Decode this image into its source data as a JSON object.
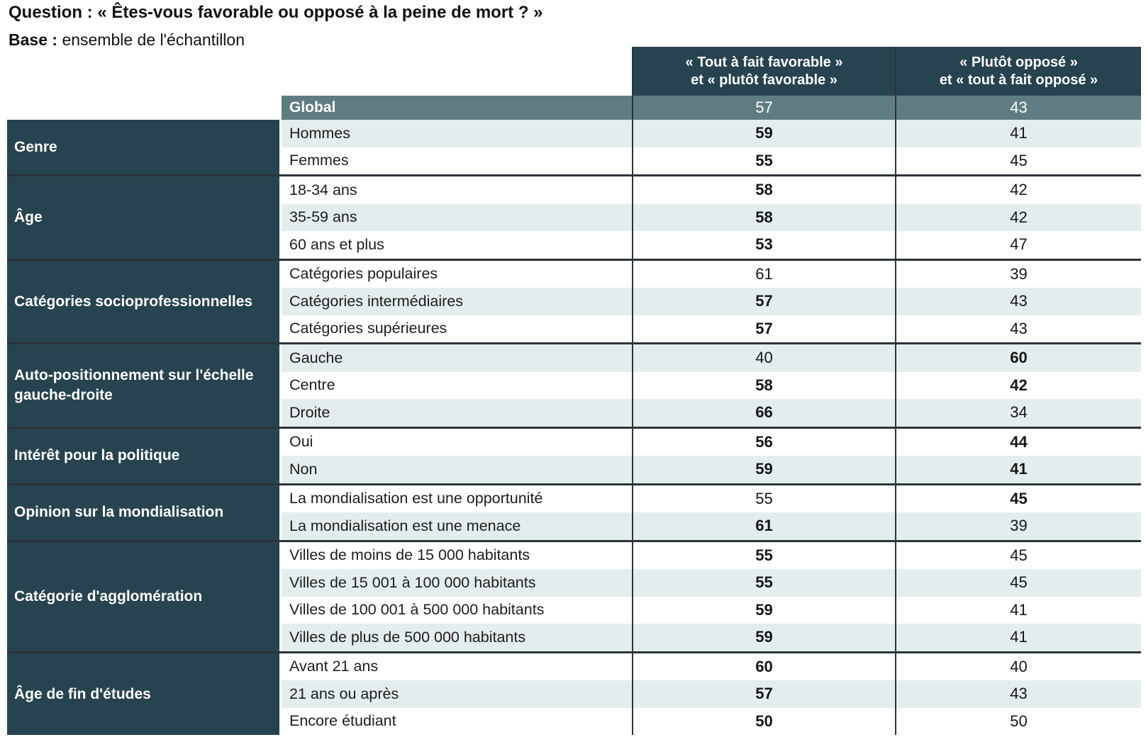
{
  "page": {
    "question_label": "Question :",
    "question_text": "« Êtes-vous favorable ou opposé à la peine de mort ? »",
    "base_label": "Base :",
    "base_text": "ensemble de l'échantillon"
  },
  "colors": {
    "header_background": "#27434f",
    "group_background": "#27434f",
    "global_row_background": "#5f7d81",
    "shaded_row_background": "#e4edee",
    "separator_line": "#2c343a",
    "text_dark": "#1d1d1b",
    "text_white": "#ffffff"
  },
  "chart_data": {
    "type": "table",
    "title": "Êtes-vous favorable ou opposé à la peine de mort ?",
    "base": "ensemble de l'échantillon",
    "unit": "%",
    "columns": [
      {
        "id": "favorable",
        "line1": "« Tout à fait favorable »",
        "line2": "et « plutôt favorable »"
      },
      {
        "id": "oppose",
        "line1": "« Plutôt opposé »",
        "line2": "et « tout à fait opposé »"
      }
    ],
    "global": {
      "label": "Global",
      "fav": 57,
      "opp": 43
    },
    "groups": [
      {
        "label": "Genre",
        "rows": [
          {
            "label": "Hommes",
            "fav": 59,
            "opp": 41,
            "fav_bold": true,
            "opp_bold": false,
            "shaded": true
          },
          {
            "label": "Femmes",
            "fav": 55,
            "opp": 45,
            "fav_bold": true,
            "opp_bold": false,
            "shaded": false
          }
        ]
      },
      {
        "label": "Âge",
        "rows": [
          {
            "label": "18-34 ans",
            "fav": 58,
            "opp": 42,
            "fav_bold": true,
            "opp_bold": false,
            "shaded": false
          },
          {
            "label": "35-59 ans",
            "fav": 58,
            "opp": 42,
            "fav_bold": true,
            "opp_bold": false,
            "shaded": true
          },
          {
            "label": "60 ans et plus",
            "fav": 53,
            "opp": 47,
            "fav_bold": true,
            "opp_bold": false,
            "shaded": false
          }
        ]
      },
      {
        "label": "Catégories socioprofessionnelles",
        "rows": [
          {
            "label": "Catégories populaires",
            "fav": 61,
            "opp": 39,
            "fav_bold": false,
            "opp_bold": false,
            "shaded": false
          },
          {
            "label": "Catégories intermédiaires",
            "fav": 57,
            "opp": 43,
            "fav_bold": true,
            "opp_bold": false,
            "shaded": true
          },
          {
            "label": "Catégories supérieures",
            "fav": 57,
            "opp": 43,
            "fav_bold": true,
            "opp_bold": false,
            "shaded": false
          }
        ]
      },
      {
        "label": "Auto-positionnement sur l'échelle gauche-droite",
        "rows": [
          {
            "label": "Gauche",
            "fav": 40,
            "opp": 60,
            "fav_bold": false,
            "opp_bold": true,
            "shaded": true
          },
          {
            "label": "Centre",
            "fav": 58,
            "opp": 42,
            "fav_bold": true,
            "opp_bold": true,
            "shaded": false
          },
          {
            "label": "Droite",
            "fav": 66,
            "opp": 34,
            "fav_bold": true,
            "opp_bold": false,
            "shaded": true
          }
        ]
      },
      {
        "label": "Intérêt pour la politique",
        "rows": [
          {
            "label": "Oui",
            "fav": 56,
            "opp": 44,
            "fav_bold": true,
            "opp_bold": true,
            "shaded": false
          },
          {
            "label": "Non",
            "fav": 59,
            "opp": 41,
            "fav_bold": true,
            "opp_bold": true,
            "shaded": true
          }
        ]
      },
      {
        "label": "Opinion sur la mondialisation",
        "rows": [
          {
            "label": "La mondialisation est une opportunité",
            "fav": 55,
            "opp": 45,
            "fav_bold": false,
            "opp_bold": true,
            "shaded": false
          },
          {
            "label": "La mondialisation est une menace",
            "fav": 61,
            "opp": 39,
            "fav_bold": true,
            "opp_bold": false,
            "shaded": true
          }
        ]
      },
      {
        "label": "Catégorie d'agglomération",
        "rows": [
          {
            "label": "Villes de moins de 15 000 habitants",
            "fav": 55,
            "opp": 45,
            "fav_bold": true,
            "opp_bold": false,
            "shaded": false
          },
          {
            "label": "Villes de 15 001 à 100 000 habitants",
            "fav": 55,
            "opp": 45,
            "fav_bold": true,
            "opp_bold": false,
            "shaded": true
          },
          {
            "label": "Villes de 100 001 à 500 000 habitants",
            "fav": 59,
            "opp": 41,
            "fav_bold": true,
            "opp_bold": false,
            "shaded": false
          },
          {
            "label": "Villes de plus de 500 000 habitants",
            "fav": 59,
            "opp": 41,
            "fav_bold": true,
            "opp_bold": false,
            "shaded": true
          }
        ]
      },
      {
        "label": "Âge de fin d'études",
        "rows": [
          {
            "label": "Avant 21 ans",
            "fav": 60,
            "opp": 40,
            "fav_bold": true,
            "opp_bold": false,
            "shaded": false
          },
          {
            "label": "21 ans ou après",
            "fav": 57,
            "opp": 43,
            "fav_bold": true,
            "opp_bold": false,
            "shaded": true
          },
          {
            "label": "Encore étudiant",
            "fav": 50,
            "opp": 50,
            "fav_bold": true,
            "opp_bold": false,
            "shaded": false
          }
        ]
      }
    ]
  }
}
